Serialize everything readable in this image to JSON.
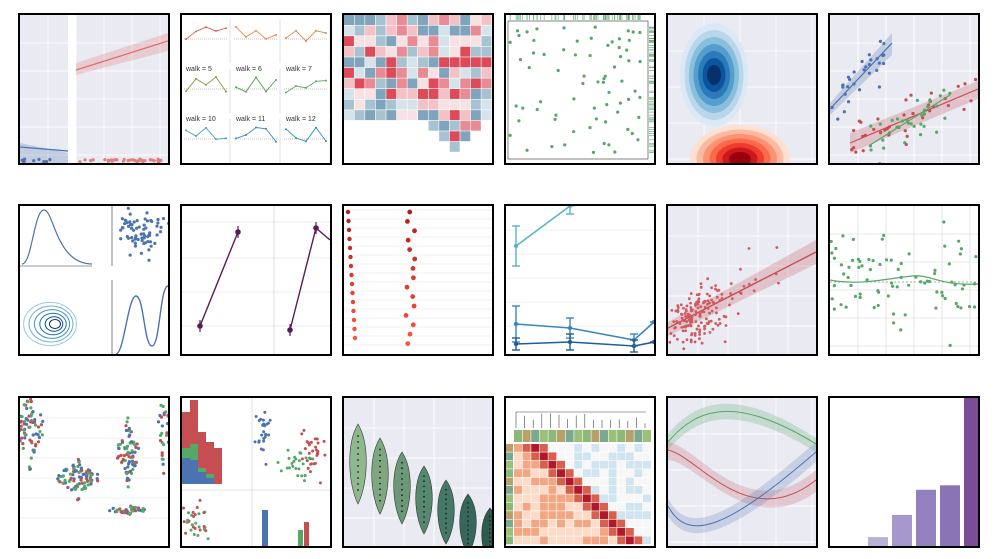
{
  "page": {
    "background": "#ffffff",
    "border_color": "#000000"
  },
  "palette": {
    "seaborn_bg": "#eaeaf2",
    "blue": "#4c72b0",
    "red": "#dd8452",
    "green": "#55a868",
    "crimson": "#c44e52",
    "purple": "#8172b3",
    "teal": "#64b5cd"
  },
  "tiles": [
    {
      "id": "logistic-regression",
      "chart_type": "scatter",
      "grid": true
    },
    {
      "id": "faceted-lineplot",
      "chart_type": "line",
      "facet_labels": [
        "walk = 5",
        "walk = 6",
        "walk = 7",
        "walk = 10",
        "walk = 11",
        "walk = 12"
      ]
    },
    {
      "id": "correlation-heatmap",
      "chart_type": "heatmap"
    },
    {
      "id": "marginal-rugplot",
      "chart_type": "scatter"
    },
    {
      "id": "kde-density",
      "chart_type": "area"
    },
    {
      "id": "regression-by-group",
      "chart_type": "scatter"
    },
    {
      "id": "pairgrid-kde",
      "chart_type": "line"
    },
    {
      "id": "pointplot-paired",
      "chart_type": "line"
    },
    {
      "id": "strip-pointplot",
      "chart_type": "scatter"
    },
    {
      "id": "errorbar-lines",
      "chart_type": "line"
    },
    {
      "id": "regplot-scatter",
      "chart_type": "scatter"
    },
    {
      "id": "lowess-scatter",
      "chart_type": "scatter"
    },
    {
      "id": "swarmplot",
      "chart_type": "scatter"
    },
    {
      "id": "pairplot-hist",
      "chart_type": "bar"
    },
    {
      "id": "violinplot",
      "chart_type": "area"
    },
    {
      "id": "clustermap",
      "chart_type": "heatmap"
    },
    {
      "id": "timeseries-bands",
      "chart_type": "line"
    },
    {
      "id": "barplot-purple",
      "chart_type": "bar"
    }
  ],
  "chart_data": [
    {
      "type": "scatter",
      "id": "logistic-regression",
      "grid": true
    },
    {
      "type": "line",
      "id": "faceted-lineplot",
      "facets": [
        "walk = 5",
        "walk = 6",
        "walk = 7",
        "walk = 10",
        "walk = 11",
        "walk = 12"
      ]
    },
    {
      "type": "heatmap",
      "id": "correlation-heatmap"
    },
    {
      "type": "scatter",
      "id": "marginal-rugplot"
    },
    {
      "type": "area",
      "id": "kde-density"
    },
    {
      "type": "scatter",
      "id": "regression-by-group"
    },
    {
      "type": "line",
      "id": "pairgrid-kde"
    },
    {
      "type": "line",
      "id": "pointplot-paired"
    },
    {
      "type": "scatter",
      "id": "strip-pointplot"
    },
    {
      "type": "line",
      "id": "errorbar-lines"
    },
    {
      "type": "scatter",
      "id": "regplot-scatter"
    },
    {
      "type": "scatter",
      "id": "lowess-scatter"
    },
    {
      "type": "scatter",
      "id": "swarmplot"
    },
    {
      "type": "bar",
      "id": "pairplot-hist"
    },
    {
      "type": "area",
      "id": "violinplot"
    },
    {
      "type": "heatmap",
      "id": "clustermap"
    },
    {
      "type": "line",
      "id": "timeseries-bands"
    },
    {
      "type": "bar",
      "id": "barplot-purple",
      "values": [
        0.06,
        0.21,
        0.38,
        0.41,
        1.0
      ]
    }
  ]
}
